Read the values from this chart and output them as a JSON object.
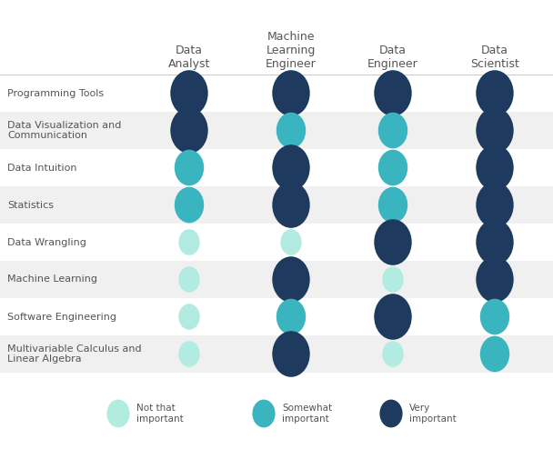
{
  "col_labels": [
    "Data\nAnalyst",
    "Machine\nLearning\nEngineer",
    "Data\nEngineer",
    "Data\nScientist"
  ],
  "row_labels": [
    "Programming Tools",
    "Data Visualization and\nCommunication",
    "Data Intuition",
    "Statistics",
    "Data Wrangling",
    "Machine Learning",
    "Software Engineering",
    "Multivariable Calculus and\nLinear Algebra"
  ],
  "colors": {
    "1": "#b2ece0",
    "2": "#3ab5c0",
    "3": "#1e3a5f"
  },
  "data": [
    [
      3,
      3,
      3,
      3
    ],
    [
      3,
      2,
      2,
      3
    ],
    [
      2,
      3,
      2,
      3
    ],
    [
      2,
      3,
      2,
      3
    ],
    [
      1,
      1,
      3,
      3
    ],
    [
      1,
      3,
      1,
      3
    ],
    [
      1,
      2,
      3,
      2
    ],
    [
      1,
      3,
      1,
      2
    ]
  ],
  "bg_colors": [
    "#ffffff",
    "#f0f0f0"
  ],
  "legend_labels": [
    "Not that\nimportant",
    "Somewhat\nimportant",
    "Very\nimportant"
  ],
  "legend_colors": [
    "#b2ece0",
    "#3ab5c0",
    "#1e3a5f"
  ],
  "fig_width": 6.08,
  "fig_height": 4.94,
  "text_color": "#555555",
  "circle_radii": {
    "1": 13,
    "2": 18,
    "3": 23
  }
}
